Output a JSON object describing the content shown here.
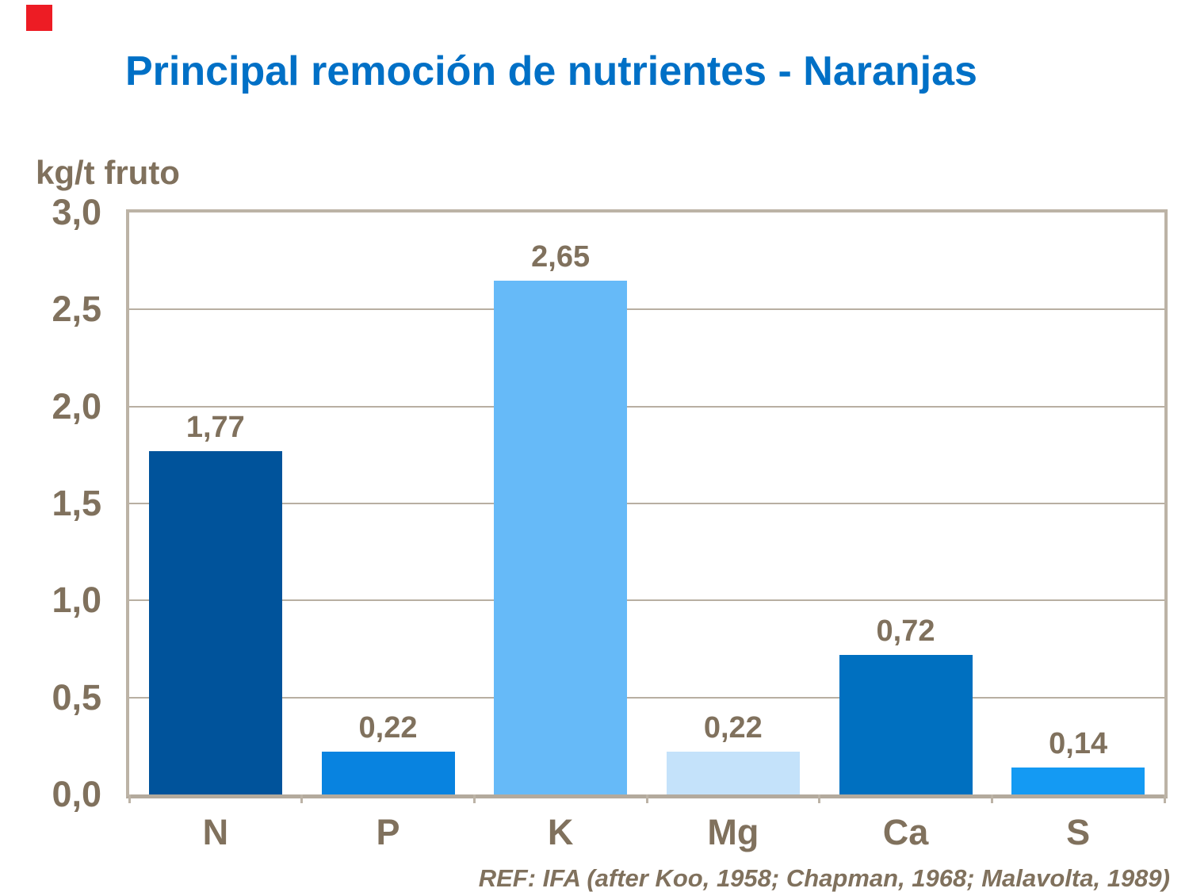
{
  "title": "Principal remoción de nutrientes - Naranjas",
  "reference": "REF: IFA (after Koo, 1958; Chapman, 1968; Malavolta, 1989)",
  "colors": {
    "title_blue": "#0070C6",
    "text_brown": "#80715D",
    "plot_border_tan": "#BCB3A6",
    "gridline_tan": "#B8AFA2",
    "accent_red": "#ED1C24"
  },
  "chart_data": {
    "type": "bar",
    "title": "Principal remoción de nutrientes - Naranjas",
    "xlabel": "",
    "ylabel": "kg/t fruto",
    "categories": [
      "N",
      "P",
      "K",
      "Mg",
      "Ca",
      "S"
    ],
    "values": [
      1.77,
      0.22,
      2.65,
      0.22,
      0.72,
      0.14
    ],
    "value_labels": [
      "1,77",
      "0,22",
      "2,65",
      "0,22",
      "0,72",
      "0,14"
    ],
    "bar_colors": [
      "#00539B",
      "#0883E0",
      "#66BAF8",
      "#C4E2FA",
      "#0070C0",
      "#149AF3"
    ],
    "ylim": [
      0,
      3.0
    ],
    "ytick_labels": [
      "0,0",
      "0,5",
      "1,0",
      "1,5",
      "2,0",
      "2,5",
      "3,0"
    ],
    "ytick_values": [
      0,
      0.5,
      1.0,
      1.5,
      2.0,
      2.5,
      3.0
    ],
    "gridline_values": [
      0.5,
      1.0,
      1.5,
      2.0,
      2.5
    ],
    "grid": true,
    "legend_position": "none",
    "decimal_separator": ","
  }
}
